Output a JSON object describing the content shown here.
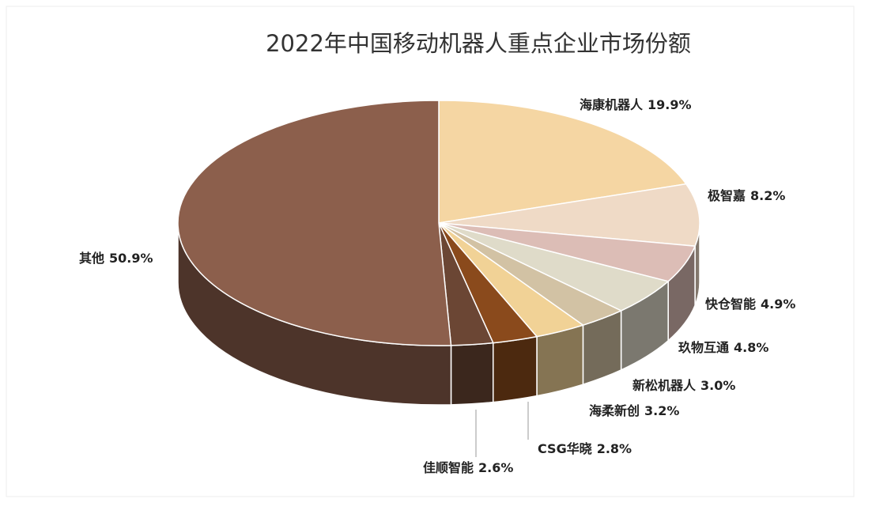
{
  "chart_data": {
    "type": "pie3d",
    "title": "2022年中国移动机器人重点企业市场份额",
    "categories": [
      "海康机器人",
      "极智嘉",
      "快仓智能",
      "玖物互通",
      "新松机器人",
      "海柔新创",
      "CSG华晓",
      "佳顺智能",
      "其他"
    ],
    "values": [
      19.9,
      8.2,
      4.9,
      4.8,
      3.0,
      3.2,
      2.8,
      2.6,
      50.9
    ],
    "value_labels": [
      "19.9%",
      "8.2%",
      "4.9%",
      "4.8%",
      "3.0%",
      "3.2%",
      "2.8%",
      "2.6%",
      "50.9%"
    ],
    "colors": [
      "#f5d6a3",
      "#efdac6",
      "#dcbdb6",
      "#dfdbc9",
      "#d2c2a4",
      "#f1d296",
      "#8a4a1c",
      "#6b4634",
      "#8c5f4c"
    ]
  }
}
